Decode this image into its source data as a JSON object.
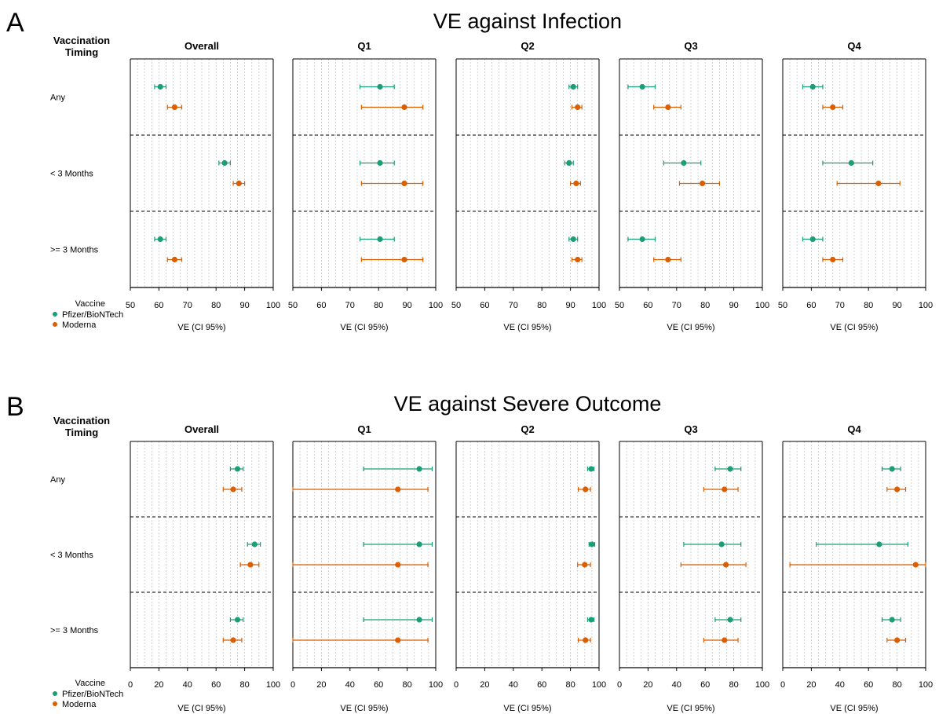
{
  "colors": {
    "pfizer": "#1b9e77",
    "moderna": "#d95f02"
  },
  "legend": {
    "title": "Vaccine",
    "items": [
      {
        "name": "Pfizer/BioNTech",
        "color": "#1b9e77"
      },
      {
        "name": "Moderna",
        "color": "#d95f02"
      }
    ]
  },
  "chart_data": [
    {
      "type": "forest",
      "panel_letter": "A",
      "title": "VE against Infection",
      "row_header": "Vaccination\nTiming",
      "rows": [
        "Any",
        "< 3 Months",
        ">= 3 Months"
      ],
      "xlabel": "VE (CI 95%)",
      "xlim": [
        50,
        100
      ],
      "xticks": [
        50,
        60,
        70,
        80,
        90,
        100
      ],
      "grid": true,
      "columns": [
        {
          "title": "Overall",
          "data": [
            {
              "pfizer": [
                60.5,
                58.5,
                62.5
              ],
              "moderna": [
                65.5,
                63,
                68
              ]
            },
            {
              "pfizer": [
                83,
                81,
                85
              ],
              "moderna": [
                88,
                86,
                90
              ]
            },
            {
              "pfizer": [
                60.5,
                58.5,
                62.5
              ],
              "moderna": [
                65.5,
                63,
                68
              ]
            }
          ]
        },
        {
          "title": "Q1",
          "data": [
            {
              "pfizer": [
                80.5,
                73.5,
                85.5
              ],
              "moderna": [
                89,
                74,
                95.5
              ]
            },
            {
              "pfizer": [
                80.5,
                73.5,
                85.5
              ],
              "moderna": [
                89,
                74,
                95.5
              ]
            },
            {
              "pfizer": [
                80.5,
                73.5,
                85.5
              ],
              "moderna": [
                89,
                74,
                95.5
              ]
            }
          ]
        },
        {
          "title": "Q2",
          "data": [
            {
              "pfizer": [
                91,
                89.5,
                92.5
              ],
              "moderna": [
                92.5,
                90.5,
                94
              ]
            },
            {
              "pfizer": [
                89.5,
                88,
                91
              ],
              "moderna": [
                92,
                90,
                93.5
              ]
            },
            {
              "pfizer": [
                91,
                89.5,
                92.5
              ],
              "moderna": [
                92.5,
                90.5,
                94
              ]
            }
          ]
        },
        {
          "title": "Q3",
          "data": [
            {
              "pfizer": [
                58,
                53,
                62.5
              ],
              "moderna": [
                67,
                62,
                71.5
              ]
            },
            {
              "pfizer": [
                72.5,
                65.5,
                78.5
              ],
              "moderna": [
                79,
                71,
                85
              ]
            },
            {
              "pfizer": [
                58,
                53,
                62.5
              ],
              "moderna": [
                67,
                62,
                71.5
              ]
            }
          ]
        },
        {
          "title": "Q4",
          "data": [
            {
              "pfizer": [
                60.5,
                57,
                64
              ],
              "moderna": [
                67.5,
                64,
                71
              ]
            },
            {
              "pfizer": [
                74,
                64,
                81.5
              ],
              "moderna": [
                83.5,
                69,
                91
              ]
            },
            {
              "pfizer": [
                60.5,
                57,
                64
              ],
              "moderna": [
                67.5,
                64,
                71
              ]
            }
          ]
        }
      ]
    },
    {
      "type": "forest",
      "panel_letter": "B",
      "title": "VE against Severe Outcome",
      "row_header": "Vaccination\nTiming",
      "rows": [
        "Any",
        "< 3 Months",
        ">= 3 Months"
      ],
      "xlabel": "VE (CI 95%)",
      "xlim": [
        0,
        100
      ],
      "xticks": [
        0,
        20,
        40,
        60,
        80,
        100
      ],
      "grid": true,
      "columns": [
        {
          "title": "Overall",
          "data": [
            {
              "pfizer": [
                75,
                70,
                79
              ],
              "moderna": [
                72,
                65,
                78
              ]
            },
            {
              "pfizer": [
                87,
                82,
                91
              ],
              "moderna": [
                84,
                77,
                90
              ]
            },
            {
              "pfizer": [
                75,
                70,
                79
              ],
              "moderna": [
                72,
                65,
                78
              ]
            }
          ]
        },
        {
          "title": "Q1",
          "data": [
            {
              "pfizer": [
                88.5,
                49.5,
                97.5
              ],
              "moderna": [
                73.5,
                0,
                94.5
              ]
            },
            {
              "pfizer": [
                88.5,
                49.5,
                97.5
              ],
              "moderna": [
                73.5,
                0,
                94.5
              ]
            },
            {
              "pfizer": [
                88.5,
                49.5,
                97.5
              ],
              "moderna": [
                73.5,
                0,
                94.5
              ]
            }
          ]
        },
        {
          "title": "Q2",
          "data": [
            {
              "pfizer": [
                94.5,
                92,
                96.5
              ],
              "moderna": [
                90.5,
                85.5,
                94
              ]
            },
            {
              "pfizer": [
                95,
                93,
                97
              ],
              "moderna": [
                90,
                85,
                94
              ]
            },
            {
              "pfizer": [
                94.5,
                92,
                96.5
              ],
              "moderna": [
                90.5,
                85.5,
                94
              ]
            }
          ]
        },
        {
          "title": "Q3",
          "data": [
            {
              "pfizer": [
                77.5,
                67,
                85
              ],
              "moderna": [
                73.5,
                59,
                83
              ]
            },
            {
              "pfizer": [
                71.5,
                45,
                85
              ],
              "moderna": [
                74.5,
                43,
                88.5
              ]
            },
            {
              "pfizer": [
                77.5,
                67,
                85
              ],
              "moderna": [
                73.5,
                59,
                83
              ]
            }
          ]
        },
        {
          "title": "Q4",
          "data": [
            {
              "pfizer": [
                76.5,
                69.5,
                82.5
              ],
              "moderna": [
                80,
                73,
                86
              ]
            },
            {
              "pfizer": [
                67.5,
                23.5,
                87.5
              ],
              "moderna": [
                93,
                5,
                100
              ]
            },
            {
              "pfizer": [
                76.5,
                69.5,
                82.5
              ],
              "moderna": [
                80,
                73,
                86
              ]
            }
          ]
        }
      ]
    }
  ]
}
